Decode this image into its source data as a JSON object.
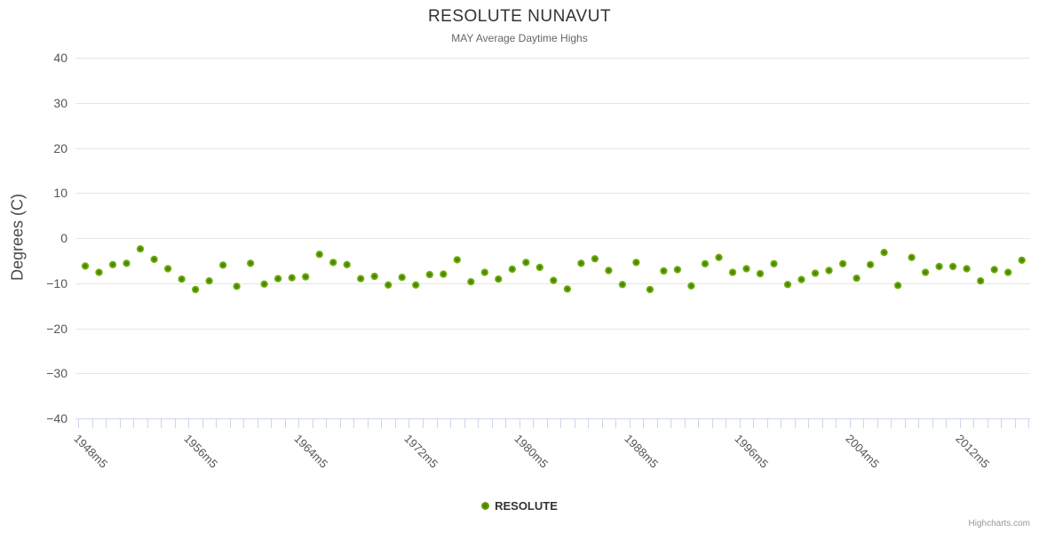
{
  "page": {
    "credits": "Highcharts.com"
  },
  "legend": {
    "label": "RESOLUTE"
  },
  "colors": {
    "marker_outer": "#7fc41c",
    "marker_inner": "#44700a",
    "grid_line": "#e6e6e6",
    "axis_line": "#ccd6eb",
    "title_text": "#333333",
    "subtitle_text": "#666666",
    "label_text": "#555555",
    "credits_text": "#999999"
  },
  "chart_data": {
    "type": "scatter",
    "title": "RESOLUTE NUNAVUT",
    "subtitle": "MAY Average Daytime Highs",
    "xlabel": "",
    "ylabel": "Degrees (C)",
    "ylim": [
      -40,
      40
    ],
    "grid": true,
    "legend_position": "bottom-center",
    "y_ticks": [
      40,
      30,
      20,
      10,
      0,
      -10,
      -20,
      -30,
      -40
    ],
    "y_tick_labels": [
      "40",
      "30",
      "20",
      "10",
      "0",
      "−10",
      "−20",
      "−30",
      "−40"
    ],
    "x_tick_labels": [
      "1948m5",
      "1956m5",
      "1964m5",
      "1972m5",
      "1980m5",
      "1988m5",
      "1996m5",
      "2004m5",
      "2012m5"
    ],
    "x_label_interval": 8,
    "x_start_year": 1948,
    "x_suffix": "m5",
    "series": [
      {
        "name": "RESOLUTE",
        "color": "#7fc41c",
        "marker": "circle",
        "values": [
          -6.2,
          -7.6,
          -5.9,
          -5.6,
          -2.4,
          -4.7,
          -6.8,
          -9.1,
          -11.4,
          -9.5,
          -6.0,
          -10.7,
          -5.6,
          -10.2,
          -9.0,
          -8.8,
          -8.6,
          -3.6,
          -5.4,
          -5.9,
          -9.0,
          -8.5,
          -10.4,
          -8.7,
          -10.4,
          -8.1,
          -8.0,
          -4.8,
          -9.7,
          -7.6,
          -9.1,
          -6.9,
          -5.4,
          -6.5,
          -9.4,
          -11.3,
          -5.6,
          -4.6,
          -7.2,
          -10.3,
          -5.4,
          -11.4,
          -7.3,
          -7.0,
          -10.6,
          -5.7,
          -4.3,
          -7.6,
          -6.8,
          -7.9,
          -5.7,
          -10.3,
          -9.2,
          -7.8,
          -7.2,
          -5.7,
          -8.9,
          -5.9,
          -3.2,
          -10.5,
          -4.3,
          -7.6,
          -6.3,
          -6.3,
          -6.8,
          -9.5,
          -7.0,
          -7.6,
          -4.9
        ]
      }
    ]
  }
}
